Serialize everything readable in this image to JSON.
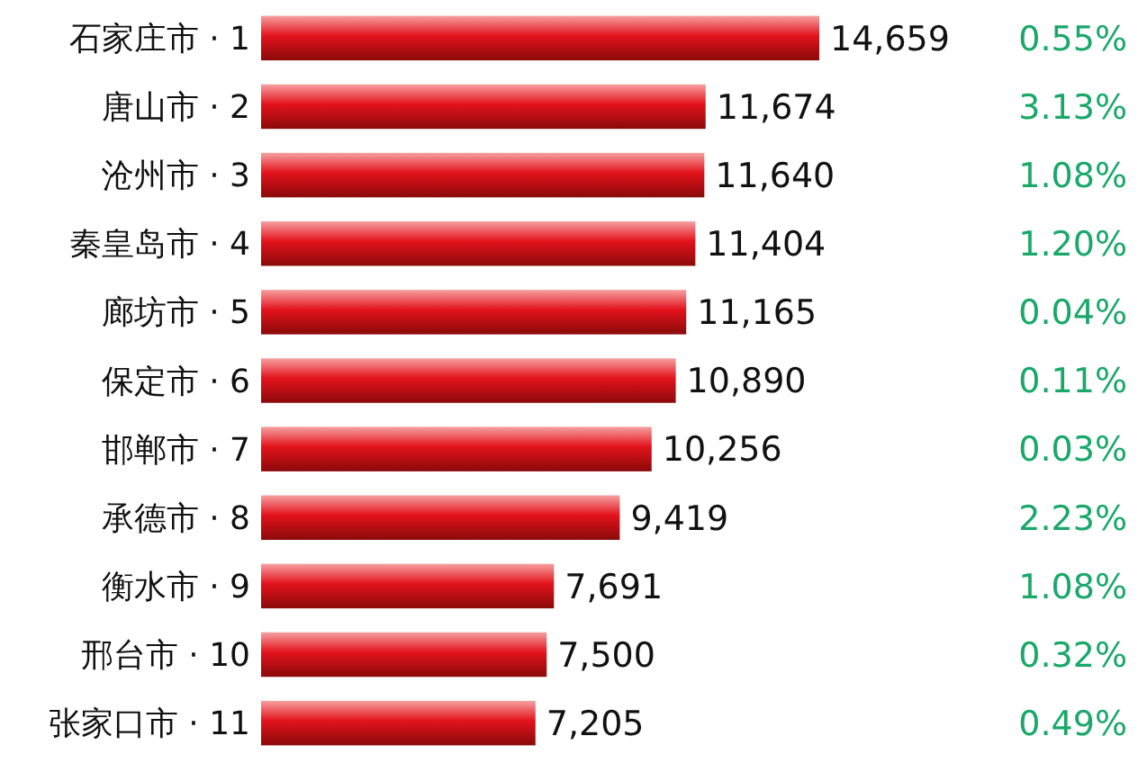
{
  "chart_data": {
    "type": "bar",
    "orientation": "horizontal",
    "color": "#e3121b",
    "value_labels": [
      "14,659",
      "11,674",
      "11,640",
      "11,404",
      "11,165",
      "10,890",
      "10,256",
      "9,419",
      "7,691",
      "7,500",
      "7,205"
    ],
    "categories": [
      "石家庄市 · 1",
      "唐山市 · 2",
      "沧州市 · 3",
      "秦皇岛市 · 4",
      "廊坊市 · 5",
      "保定市 · 6",
      "邯郸市 · 7",
      "承德市 · 8",
      "衡水市 · 9",
      "邢台市 · 10",
      "张家口市 · 11"
    ],
    "values": [
      14659,
      11674,
      11640,
      11404,
      11165,
      10890,
      10256,
      9419,
      7691,
      7500,
      7205
    ],
    "annotations": [
      "0.55%",
      "3.13%",
      "1.08%",
      "1.20%",
      "0.04%",
      "0.11%",
      "0.03%",
      "2.23%",
      "1.08%",
      "0.32%",
      "0.49%"
    ]
  }
}
